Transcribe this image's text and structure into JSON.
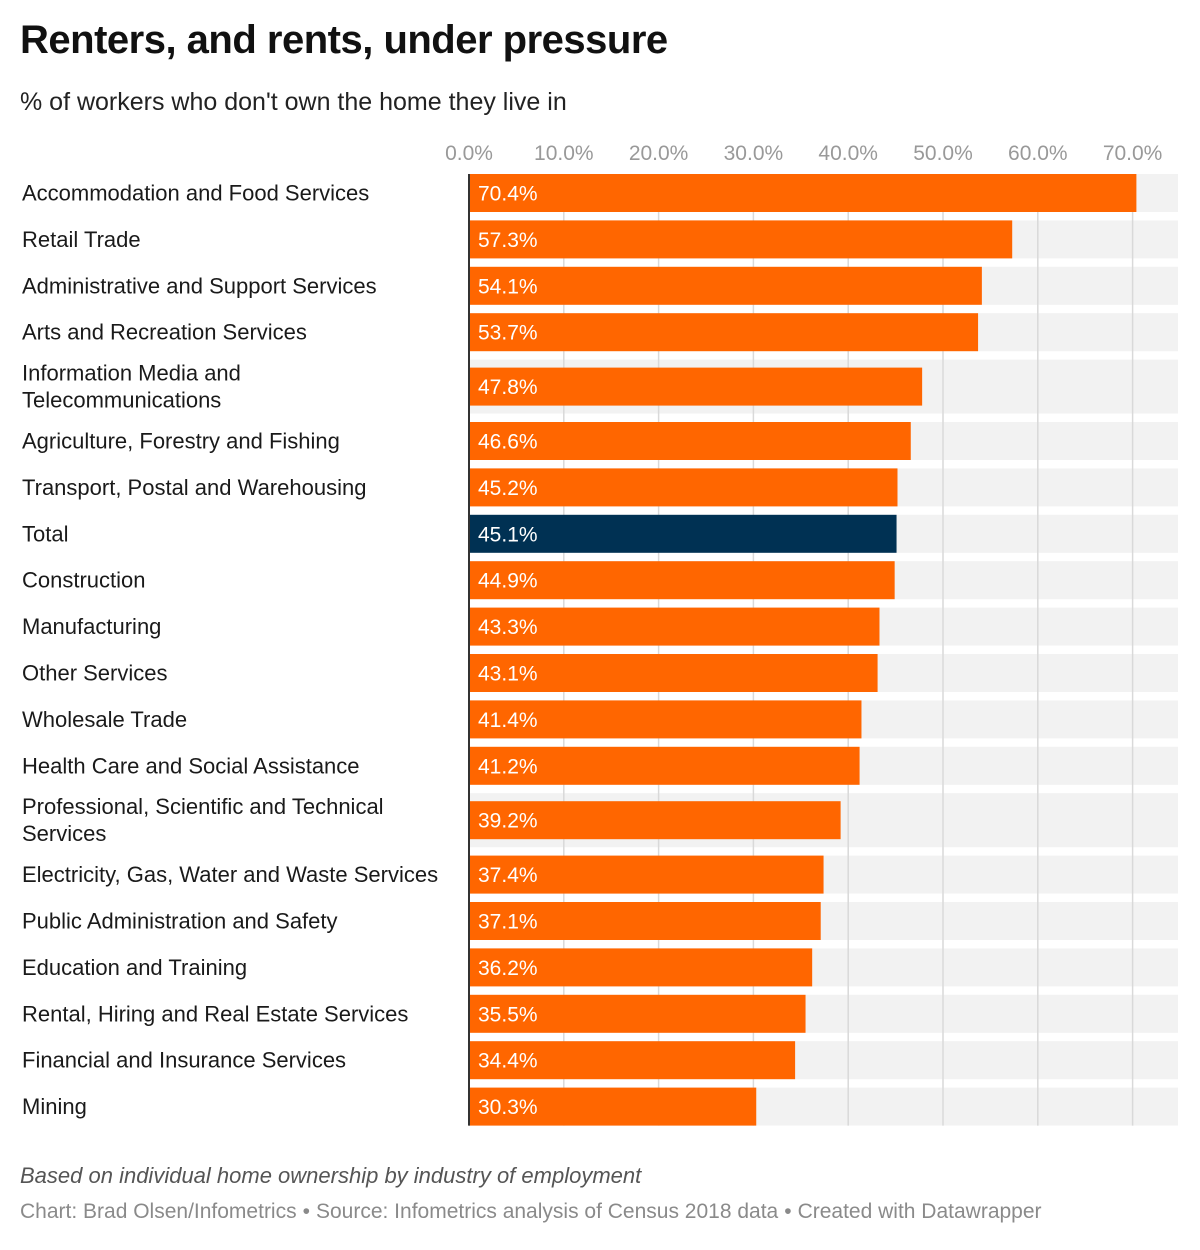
{
  "title": "Renters, and rents, under pressure",
  "subtitle": "% of workers who don't own the home they live in",
  "notes": "Based on individual home ownership by industry of employment",
  "credits": {
    "chart": "Chart: Brad Olsen/Infometrics",
    "source": "Source: Infometrics analysis of Census 2018 data",
    "tool": "Created with Datawrapper",
    "separator": "•"
  },
  "colors": {
    "bar": "#ff6600",
    "highlight": "#003153",
    "background_band": "#f2f2f2",
    "grid": "#d9d9d9",
    "tick_label": "#999999",
    "value_label": "#ffffff"
  },
  "chart_data": {
    "type": "bar",
    "orientation": "horizontal",
    "xlim": [
      0,
      75
    ],
    "ticks": [
      0,
      10,
      20,
      30,
      40,
      50,
      60,
      70
    ],
    "tick_labels": [
      "0.0%",
      "10.0%",
      "20.0%",
      "30.0%",
      "40.0%",
      "50.0%",
      "60.0%",
      "70.0%"
    ],
    "grid": true,
    "highlight_category": "Total",
    "categories": [
      [
        "Accommodation and Food Services"
      ],
      [
        "Retail Trade"
      ],
      [
        "Administrative and Support Services"
      ],
      [
        "Arts and Recreation Services"
      ],
      [
        "Information Media and",
        "Telecommunications"
      ],
      [
        "Agriculture, Forestry and Fishing"
      ],
      [
        "Transport, Postal and Warehousing"
      ],
      [
        "Total"
      ],
      [
        "Construction"
      ],
      [
        "Manufacturing"
      ],
      [
        "Other Services"
      ],
      [
        "Wholesale Trade"
      ],
      [
        "Health Care and Social Assistance"
      ],
      [
        "Professional, Scientific and Technical",
        "Services"
      ],
      [
        "Electricity, Gas, Water and Waste Services"
      ],
      [
        "Public Administration and Safety"
      ],
      [
        "Education and Training"
      ],
      [
        "Rental, Hiring and Real Estate Services"
      ],
      [
        "Financial and Insurance Services"
      ],
      [
        "Mining"
      ]
    ],
    "values": [
      70.4,
      57.3,
      54.1,
      53.7,
      47.8,
      46.6,
      45.2,
      45.1,
      44.9,
      43.3,
      43.1,
      41.4,
      41.2,
      39.2,
      37.4,
      37.1,
      36.2,
      35.5,
      34.4,
      30.3
    ],
    "value_labels": [
      "70.4%",
      "57.3%",
      "54.1%",
      "53.7%",
      "47.8%",
      "46.6%",
      "45.2%",
      "45.1%",
      "44.9%",
      "43.3%",
      "43.1%",
      "41.4%",
      "41.2%",
      "39.2%",
      "37.4%",
      "37.1%",
      "36.2%",
      "35.5%",
      "34.4%",
      "30.3%"
    ]
  }
}
